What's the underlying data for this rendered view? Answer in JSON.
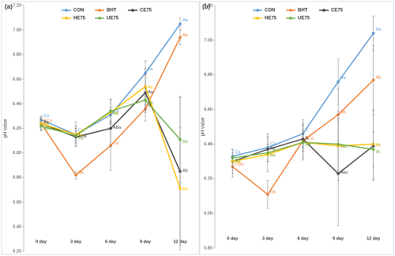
{
  "chart_data": [
    {
      "type": "line",
      "title": "(a)",
      "y_label": "pH value",
      "categories": [
        "0 day",
        "3 day",
        "6 day",
        "9 day",
        "12 day"
      ],
      "ylim": [
        5.2,
        7.2
      ],
      "yticks": [
        {
          "value": 5.2,
          "label": "5.20"
        },
        {
          "value": 5.4,
          "label": "5.40"
        },
        {
          "value": 5.6,
          "label": "5.60"
        },
        {
          "value": 5.8,
          "label": "5.80"
        },
        {
          "value": 6.0,
          "label": "6.00"
        },
        {
          "value": 6.2,
          "label": "6.20"
        },
        {
          "value": 6.4,
          "label": "6.40"
        },
        {
          "value": 6.6,
          "label": "6.60"
        },
        {
          "value": 6.8,
          "label": "6.80"
        },
        {
          "value": 7.0,
          "label": "7.00"
        },
        {
          "value": 7.2,
          "label": "7.20"
        }
      ],
      "series": [
        {
          "name": "CON",
          "color": "#5b9bd5",
          "values": [
            6.27,
            6.15,
            6.31,
            6.65,
            7.05
          ],
          "errors": [
            0.03,
            0.05,
            0.06,
            0.1,
            0.05
          ],
          "letters": [
            "Ca",
            "Ca",
            "Ca",
            "Ba",
            "Aa"
          ]
        },
        {
          "name": "BHT",
          "color": "#ed7d31",
          "values": [
            6.24,
            5.82,
            6.06,
            6.36,
            6.94
          ],
          "errors": [
            0.05,
            0.03,
            0.2,
            0.1,
            0.06
          ],
          "letters": [
            "BCa",
            "Db",
            "Ca",
            "Ba",
            "Aa"
          ]
        },
        {
          "name": "CE75",
          "color": "#404040",
          "values": [
            6.24,
            6.13,
            6.2,
            6.49,
            5.85
          ],
          "errors": [
            0.05,
            0.05,
            0.15,
            0.15,
            0.6
          ],
          "letters": [
            "Aa",
            "ABa",
            "ABa",
            "Aa",
            "Ab"
          ]
        },
        {
          "name": "HE75",
          "color": "#ffc000",
          "values": [
            6.24,
            6.15,
            6.33,
            6.54,
            5.71
          ],
          "errors": [
            0.03,
            0.1,
            0.1,
            0.15,
            0.5
          ],
          "letters": [
            "Aa",
            "Aa",
            "Aa",
            "Aa",
            "Bb"
          ]
        },
        {
          "name": "UE75",
          "color": "#70ad47",
          "values": [
            6.22,
            6.14,
            6.34,
            6.43,
            6.11
          ],
          "errors": [
            0.04,
            0.08,
            0.1,
            0.1,
            0.35
          ],
          "letters": [
            "ABa",
            "Aa",
            "Aa",
            "Aa",
            "Bb"
          ]
        }
      ]
    },
    {
      "type": "line",
      "title": "(b)",
      "y_label": "pH value",
      "categories": [
        "0 day",
        "3 day",
        "6 day",
        "9 day",
        "12 day"
      ],
      "ylim": [
        5.8,
        7.2
      ],
      "yticks": [
        {
          "value": 5.8,
          "label": "5.80"
        },
        {
          "value": 6.0,
          "label": "6.00"
        },
        {
          "value": 6.2,
          "label": "6.20"
        },
        {
          "value": 6.4,
          "label": "6.40"
        },
        {
          "value": 6.6,
          "label": "6.60"
        },
        {
          "value": 6.8,
          "label": "6.80"
        },
        {
          "value": 7.0,
          "label": "7.00"
        },
        {
          "value": 7.2,
          "label": "7.20"
        }
      ],
      "series": [
        {
          "name": "CON",
          "color": "#5b9bd5",
          "values": [
            6.33,
            6.38,
            6.46,
            6.76,
            7.04
          ],
          "errors": [
            0.04,
            0.08,
            0.08,
            0.13,
            0.1
          ],
          "letters": [
            "Ca",
            "Ca",
            "C",
            "Ba",
            "Aa"
          ]
        },
        {
          "name": "BHT",
          "color": "#ed7d31",
          "values": [
            6.27,
            6.11,
            6.42,
            6.57,
            6.77
          ],
          "errors": [
            0.06,
            0.08,
            0.1,
            0.15,
            0.2
          ],
          "letters": [
            "CDa",
            "Db",
            "BCa",
            "Bb",
            "Ab"
          ]
        },
        {
          "name": "CE75",
          "color": "#404040",
          "values": [
            6.3,
            6.37,
            6.43,
            6.23,
            6.39
          ],
          "errors": [
            0.07,
            0.07,
            0.05,
            0.3,
            0.2
          ],
          "letters": [
            "A",
            "Aa",
            "A",
            "Abc",
            "Ac"
          ]
        },
        {
          "name": "HE75",
          "color": "#ffc000",
          "values": [
            6.3,
            6.34,
            6.41,
            6.39,
            6.4
          ],
          "errors": [
            0.05,
            0.1,
            0.1,
            0.2,
            0.2
          ],
          "letters": [
            "Aa",
            "Aa",
            "Aa",
            "Ac",
            "Ac"
          ]
        },
        {
          "name": "UE75",
          "color": "#70ad47",
          "values": [
            6.32,
            6.35,
            6.41,
            6.4,
            6.37
          ],
          "errors": [
            0.05,
            0.05,
            0.05,
            0.15,
            0.1
          ],
          "letters": [
            "Aa",
            "Aa",
            "Aa",
            "Abc",
            "Ac"
          ]
        }
      ]
    }
  ]
}
